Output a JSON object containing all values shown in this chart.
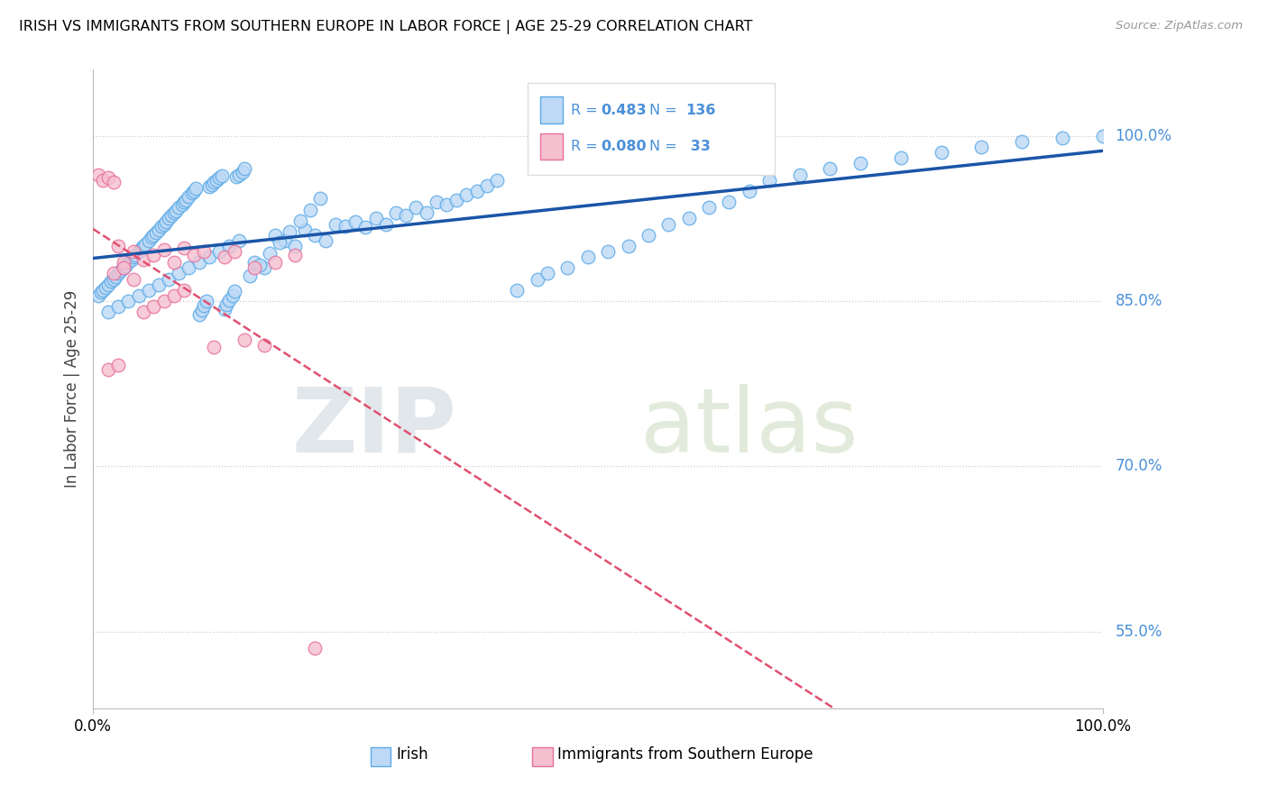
{
  "title": "IRISH VS IMMIGRANTS FROM SOUTHERN EUROPE IN LABOR FORCE | AGE 25-29 CORRELATION CHART",
  "source": "Source: ZipAtlas.com",
  "ylabel": "In Labor Force | Age 25-29",
  "ytick_values": [
    0.55,
    0.7,
    0.85,
    1.0
  ],
  "ytick_labels": [
    "55.0%",
    "70.0%",
    "85.0%",
    "100.0%"
  ],
  "xlim": [
    0.0,
    1.0
  ],
  "ylim": [
    0.48,
    1.06
  ],
  "blue_edge": "#5BAAE8",
  "blue_face": "#BDD9F5",
  "pink_edge": "#E8709A",
  "pink_face": "#F5C0D0",
  "trend_blue": "#1A55A8",
  "trend_pink": "#E05070",
  "legend_text_color": "#4A90D9",
  "R_blue": 0.483,
  "N_blue": 136,
  "R_pink": 0.08,
  "N_pink": 33,
  "label_blue": "Irish",
  "label_pink": "Immigrants from Southern Europe",
  "grid_color": "#CCCCCC",
  "spine_color": "#BBBBBB"
}
